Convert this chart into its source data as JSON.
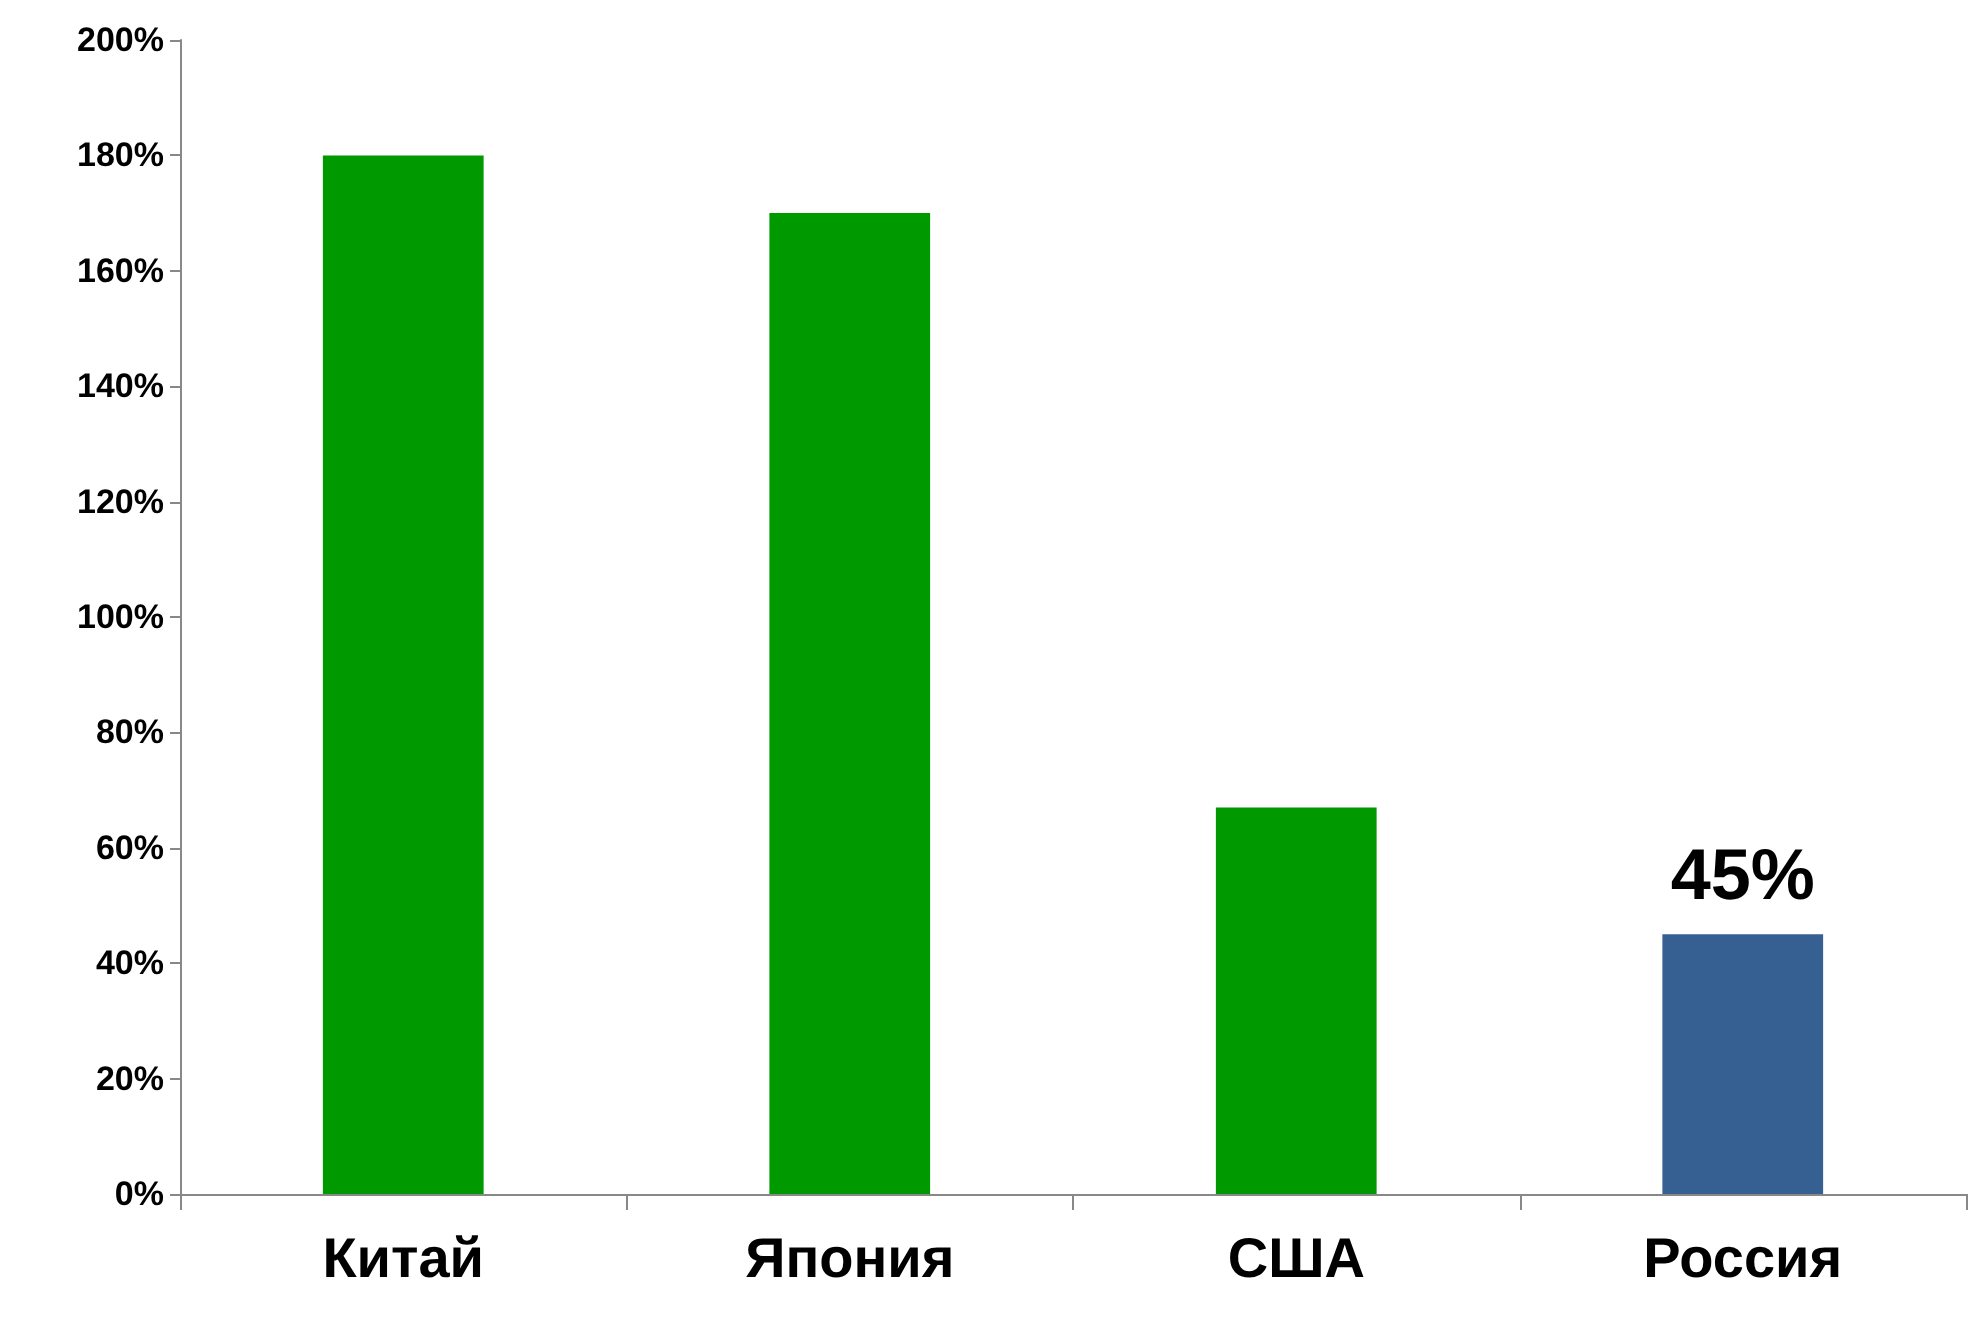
{
  "chart_data": {
    "type": "bar",
    "categories": [
      "Китай",
      "Япония",
      "США",
      "Россия"
    ],
    "values": [
      180,
      170,
      67,
      45
    ],
    "colors": [
      "#009900",
      "#009900",
      "#009900",
      "#376092"
    ],
    "value_labels": [
      null,
      null,
      null,
      "45%"
    ],
    "ylim": [
      0,
      200
    ],
    "yticks": [
      {
        "value": 0,
        "label": "0%"
      },
      {
        "value": 20,
        "label": "20%"
      },
      {
        "value": 40,
        "label": "40%"
      },
      {
        "value": 60,
        "label": "60%"
      },
      {
        "value": 80,
        "label": "80%"
      },
      {
        "value": 100,
        "label": "100%"
      },
      {
        "value": 120,
        "label": "120%"
      },
      {
        "value": 140,
        "label": "140%"
      },
      {
        "value": 160,
        "label": "160%"
      },
      {
        "value": 180,
        "label": "180%"
      },
      {
        "value": 200,
        "label": "200%"
      }
    ],
    "grid": false
  }
}
